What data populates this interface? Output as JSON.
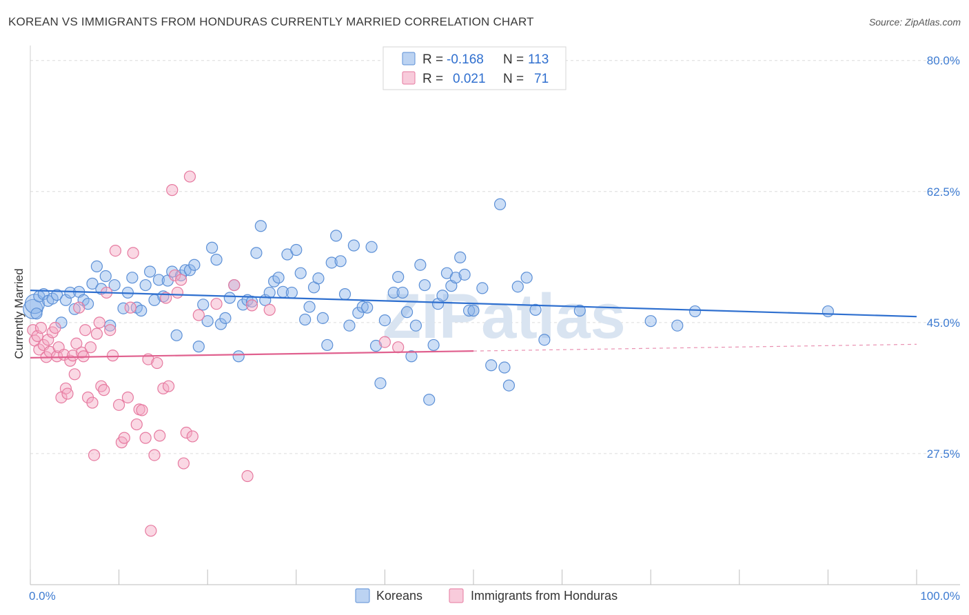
{
  "title": "KOREAN VS IMMIGRANTS FROM HONDURAS CURRENTLY MARRIED CORRELATION CHART",
  "source": "Source: ZipAtlas.com",
  "watermark": "ZIPatlas",
  "chart_data": {
    "type": "scatter",
    "ylabel": "Currently Married",
    "xlim": [
      0,
      100
    ],
    "ylim": [
      10,
      82
    ],
    "y_ticks": [
      {
        "value": 80,
        "label": "80.0%"
      },
      {
        "value": 62.5,
        "label": "62.5%"
      },
      {
        "value": 45,
        "label": "45.0%"
      },
      {
        "value": 27.5,
        "label": "27.5%"
      }
    ],
    "x_tick_labels": [
      {
        "value": 0,
        "label": "0.0%"
      },
      {
        "value": 100,
        "label": "100.0%"
      }
    ],
    "grid": true,
    "legend_position": "top-center",
    "stats": [
      {
        "r_label": "R =",
        "r": "-0.168",
        "n_label": "N =",
        "n": "113"
      },
      {
        "r_label": "R =",
        "r": "0.021",
        "n_label": "N =",
        "n": "71"
      }
    ],
    "series": [
      {
        "name": "Koreans",
        "color": "#8fb6ea",
        "stroke": "#5b8fd6",
        "trend": {
          "x": [
            0,
            100
          ],
          "y": [
            49.3,
            45.8
          ],
          "color": "#2e6fcf"
        },
        "points": [
          [
            0.3,
            46.8
          ],
          [
            0.5,
            47.5
          ],
          [
            0.7,
            46.2
          ],
          [
            1.0,
            48.5
          ],
          [
            1.5,
            48.8
          ],
          [
            2.0,
            47.9
          ],
          [
            2.5,
            48.2
          ],
          [
            3.0,
            48.7
          ],
          [
            3.5,
            45.0
          ],
          [
            4.0,
            48.0
          ],
          [
            4.5,
            49.0
          ],
          [
            5.0,
            46.8
          ],
          [
            5.5,
            49.1
          ],
          [
            6.0,
            48.0
          ],
          [
            6.5,
            47.5
          ],
          [
            7.0,
            50.2
          ],
          [
            7.5,
            52.5
          ],
          [
            8.0,
            49.5
          ],
          [
            8.5,
            51.2
          ],
          [
            9.0,
            44.6
          ],
          [
            9.5,
            50.0
          ],
          [
            10.5,
            46.9
          ],
          [
            11.0,
            49.0
          ],
          [
            11.5,
            51.0
          ],
          [
            12.0,
            47.0
          ],
          [
            12.5,
            46.6
          ],
          [
            13.0,
            50.0
          ],
          [
            13.5,
            51.8
          ],
          [
            14.0,
            48.0
          ],
          [
            14.5,
            50.7
          ],
          [
            15.0,
            48.5
          ],
          [
            15.5,
            50.6
          ],
          [
            16.0,
            51.8
          ],
          [
            16.5,
            43.3
          ],
          [
            17.0,
            51.3
          ],
          [
            17.5,
            52.0
          ],
          [
            18.0,
            52.0
          ],
          [
            18.5,
            52.7
          ],
          [
            19.0,
            41.8
          ],
          [
            19.5,
            47.4
          ],
          [
            20.0,
            45.2
          ],
          [
            20.5,
            55.0
          ],
          [
            21.0,
            53.4
          ],
          [
            21.5,
            44.8
          ],
          [
            22.0,
            45.6
          ],
          [
            22.5,
            48.3
          ],
          [
            23.0,
            50.0
          ],
          [
            23.5,
            40.5
          ],
          [
            24.0,
            47.4
          ],
          [
            24.5,
            48.0
          ],
          [
            25.0,
            47.8
          ],
          [
            25.5,
            54.3
          ],
          [
            26.0,
            57.9
          ],
          [
            26.5,
            48.0
          ],
          [
            27.0,
            49.0
          ],
          [
            27.5,
            50.5
          ],
          [
            28.0,
            51.0
          ],
          [
            28.5,
            49.1
          ],
          [
            29.0,
            54.1
          ],
          [
            29.5,
            49.0
          ],
          [
            30.0,
            54.7
          ],
          [
            30.5,
            51.6
          ],
          [
            31.0,
            45.4
          ],
          [
            31.5,
            47.1
          ],
          [
            32.0,
            49.7
          ],
          [
            32.5,
            50.9
          ],
          [
            33.0,
            45.6
          ],
          [
            33.5,
            42.0
          ],
          [
            34.0,
            53.0
          ],
          [
            34.5,
            56.6
          ],
          [
            35.0,
            53.2
          ],
          [
            35.5,
            48.8
          ],
          [
            36.0,
            44.6
          ],
          [
            36.5,
            55.3
          ],
          [
            37.0,
            46.3
          ],
          [
            37.5,
            47.1
          ],
          [
            38.0,
            47.0
          ],
          [
            38.5,
            55.1
          ],
          [
            39.0,
            41.9
          ],
          [
            39.5,
            36.9
          ],
          [
            40.0,
            45.3
          ],
          [
            41.0,
            49.0
          ],
          [
            41.5,
            51.1
          ],
          [
            42.0,
            49.0
          ],
          [
            42.5,
            46.4
          ],
          [
            43.0,
            40.5
          ],
          [
            43.5,
            44.6
          ],
          [
            44.0,
            52.7
          ],
          [
            44.5,
            50.0
          ],
          [
            45.0,
            34.7
          ],
          [
            45.5,
            42.0
          ],
          [
            46.0,
            47.5
          ],
          [
            46.5,
            48.6
          ],
          [
            47.0,
            51.6
          ],
          [
            47.5,
            49.9
          ],
          [
            48.0,
            51.0
          ],
          [
            48.5,
            53.7
          ],
          [
            49.0,
            51.4
          ],
          [
            49.5,
            46.6
          ],
          [
            50.0,
            46.6
          ],
          [
            51.0,
            49.6
          ],
          [
            52.0,
            39.3
          ],
          [
            53.0,
            60.8
          ],
          [
            53.5,
            39.0
          ],
          [
            54.0,
            36.6
          ],
          [
            55.0,
            49.8
          ],
          [
            56.0,
            51.0
          ],
          [
            57.0,
            46.7
          ],
          [
            58.0,
            42.7
          ],
          [
            62.0,
            46.6
          ],
          [
            70.0,
            45.2
          ],
          [
            73.0,
            44.6
          ],
          [
            75.0,
            46.5
          ],
          [
            90.0,
            46.5
          ]
        ]
      },
      {
        "name": "Immigrants from Honduras",
        "color": "#f3a9c3",
        "stroke": "#e6799f",
        "trend": {
          "x": [
            0,
            50
          ],
          "y": [
            40.3,
            41.2
          ],
          "color": "#e0608e"
        },
        "trend_dashed": {
          "x": [
            50,
            100
          ],
          "y": [
            41.2,
            42.1
          ]
        },
        "points": [
          [
            0.3,
            44.0
          ],
          [
            0.5,
            42.6
          ],
          [
            0.8,
            43.2
          ],
          [
            1.0,
            41.4
          ],
          [
            1.2,
            44.3
          ],
          [
            1.5,
            42.0
          ],
          [
            1.8,
            40.4
          ],
          [
            2.0,
            42.7
          ],
          [
            2.2,
            41.1
          ],
          [
            2.5,
            43.7
          ],
          [
            2.8,
            44.3
          ],
          [
            3.0,
            40.5
          ],
          [
            3.2,
            41.7
          ],
          [
            3.5,
            35.0
          ],
          [
            3.8,
            40.7
          ],
          [
            4.0,
            36.2
          ],
          [
            4.2,
            35.5
          ],
          [
            4.5,
            39.9
          ],
          [
            4.8,
            40.6
          ],
          [
            5.0,
            38.1
          ],
          [
            5.2,
            42.2
          ],
          [
            5.5,
            47.0
          ],
          [
            5.8,
            41.0
          ],
          [
            6.0,
            40.5
          ],
          [
            6.2,
            44.0
          ],
          [
            6.5,
            35.0
          ],
          [
            6.8,
            41.7
          ],
          [
            7.0,
            34.3
          ],
          [
            7.2,
            27.3
          ],
          [
            7.5,
            43.5
          ],
          [
            7.8,
            45.0
          ],
          [
            8.0,
            36.5
          ],
          [
            8.3,
            36.0
          ],
          [
            8.6,
            49.0
          ],
          [
            9.0,
            44.0
          ],
          [
            9.3,
            40.6
          ],
          [
            9.6,
            54.6
          ],
          [
            10.0,
            34.0
          ],
          [
            10.3,
            29.0
          ],
          [
            10.6,
            29.6
          ],
          [
            11.0,
            35.0
          ],
          [
            11.3,
            47.0
          ],
          [
            11.6,
            54.3
          ],
          [
            12.0,
            31.4
          ],
          [
            12.3,
            33.4
          ],
          [
            12.6,
            33.3
          ],
          [
            13.0,
            29.6
          ],
          [
            13.3,
            40.1
          ],
          [
            13.6,
            17.2
          ],
          [
            14.0,
            27.3
          ],
          [
            14.3,
            39.6
          ],
          [
            14.6,
            29.9
          ],
          [
            15.0,
            36.2
          ],
          [
            15.3,
            48.3
          ],
          [
            15.6,
            36.5
          ],
          [
            16.0,
            62.7
          ],
          [
            16.3,
            51.3
          ],
          [
            16.6,
            49.0
          ],
          [
            17.0,
            50.7
          ],
          [
            17.3,
            26.2
          ],
          [
            17.6,
            30.3
          ],
          [
            18.0,
            64.5
          ],
          [
            18.3,
            29.8
          ],
          [
            19.0,
            46.0
          ],
          [
            21.0,
            47.5
          ],
          [
            23.0,
            50.0
          ],
          [
            24.5,
            24.5
          ],
          [
            25.0,
            47.3
          ],
          [
            27.0,
            46.7
          ],
          [
            40.0,
            42.4
          ],
          [
            41.5,
            41.7
          ]
        ]
      }
    ]
  }
}
